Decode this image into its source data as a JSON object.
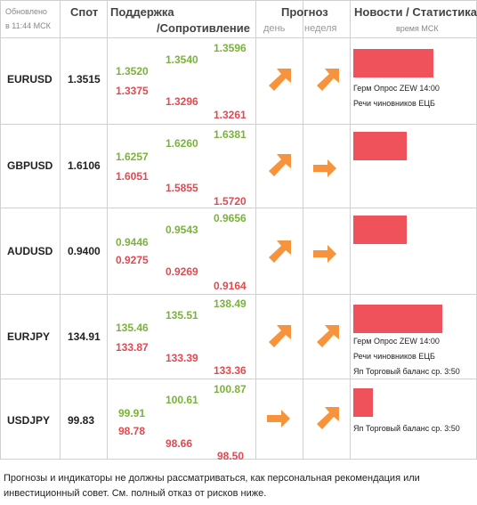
{
  "header": {
    "updated_line1": "Обновлено",
    "updated_line2": "в 11:44 МСК",
    "spot": "Спот",
    "support": "Поддержка",
    "resistance": "/Сопротивление",
    "forecast": "Прогноз",
    "day": "день",
    "week": "неделя",
    "news": "Новости / Статистика",
    "time_msk": "время МСК"
  },
  "rows": [
    {
      "pair": "EURUSD",
      "spot": "1.3515",
      "s1_up": "1.3520",
      "s1_dn": "1.3375",
      "s2_up": "1.3540",
      "s2_dn": "1.3296",
      "s3_up": "1.3596",
      "s3_dn": "1.3261",
      "day_icon": "arrow-up-right",
      "week_icon": "arrow-up-right",
      "news_level": 0.9,
      "news": [
        "Герм Опрос ZEW 14:00",
        "Речи чиновников ЕЦБ"
      ]
    },
    {
      "pair": "GBPUSD",
      "spot": "1.6106",
      "s1_up": "1.6257",
      "s1_dn": "1.6051",
      "s2_up": "1.6260",
      "s2_dn": "1.5855",
      "s3_up": "1.6381",
      "s3_dn": "1.5720",
      "day_icon": "arrow-up-right",
      "week_icon": "arrow-right",
      "news_level": 0.6,
      "news": []
    },
    {
      "pair": "AUDUSD",
      "spot": "0.9400",
      "s1_up": "0.9446",
      "s1_dn": "0.9275",
      "s2_up": "0.9543",
      "s2_dn": "0.9269",
      "s3_up": "0.9656",
      "s3_dn": "0.9164",
      "day_icon": "arrow-up-right",
      "week_icon": "arrow-right",
      "news_level": 0.6,
      "news": []
    },
    {
      "pair": "EURJPY",
      "spot": "134.91",
      "s1_up": "135.46",
      "s1_dn": "133.87",
      "s2_up": "135.51",
      "s2_dn": "133.39",
      "s3_up": "138.49",
      "s3_dn": "133.36",
      "day_icon": "arrow-up-right",
      "week_icon": "arrow-up-right",
      "news_level": 1.0,
      "news": [
        "Герм Опрос ZEW 14:00",
        "Речи чиновников ЕЦБ",
        "Яп Торговый баланс ср. 3:50"
      ]
    },
    {
      "pair": "USDJPY",
      "spot": "99.83",
      "s1_up": "99.91",
      "s1_dn": "98.78",
      "s2_up": "100.61",
      "s2_dn": "98.66",
      "s3_up": "100.87",
      "s3_dn": "98.50",
      "day_icon": "arrow-right",
      "week_icon": "arrow-up-right",
      "news_level": 0.22,
      "news": [
        "Яп Торговый баланс ср. 3:50"
      ]
    }
  ],
  "colors": {
    "support": "#7ab33a",
    "resistance": "#e04a50",
    "arrow": "#f5943c",
    "bar": "#f0525c"
  },
  "disclaimer_line1": "Прогнозы и индикаторы не должны рассматриваться, как персональная рекомендация или",
  "disclaimer_line2": "инвестиционный совет. См. полный отказ от рисков ниже."
}
